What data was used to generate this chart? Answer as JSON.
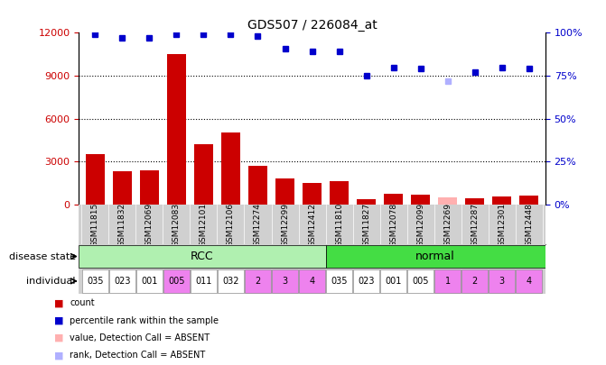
{
  "title": "GDS507 / 226084_at",
  "samples": [
    "GSM11815",
    "GSM11832",
    "GSM12069",
    "GSM12083",
    "GSM12101",
    "GSM12106",
    "GSM12274",
    "GSM12299",
    "GSM12412",
    "GSM11810",
    "GSM11827",
    "GSM12078",
    "GSM12099",
    "GSM12269",
    "GSM12287",
    "GSM12301",
    "GSM12448"
  ],
  "counts": [
    3500,
    2300,
    2400,
    10500,
    4200,
    5000,
    2700,
    1800,
    1500,
    1600,
    350,
    750,
    700,
    500,
    450,
    550,
    600
  ],
  "counts_absent": [
    false,
    false,
    false,
    false,
    false,
    false,
    false,
    false,
    false,
    false,
    false,
    false,
    false,
    true,
    false,
    false,
    false
  ],
  "percentile_ranks": [
    99,
    97,
    97,
    99,
    99,
    99,
    98,
    91,
    89,
    89,
    75,
    80,
    79,
    72,
    77,
    80,
    79
  ],
  "percentile_absent": [
    false,
    false,
    false,
    false,
    false,
    false,
    false,
    false,
    false,
    false,
    false,
    false,
    false,
    true,
    false,
    false,
    false
  ],
  "individual": [
    "035",
    "023",
    "001",
    "005",
    "011",
    "032",
    "2",
    "3",
    "4",
    "035",
    "023",
    "001",
    "005",
    "1",
    "2",
    "3",
    "4"
  ],
  "individual_color": [
    "white",
    "white",
    "white",
    "magenta",
    "white",
    "white",
    "magenta",
    "magenta",
    "magenta",
    "white",
    "white",
    "white",
    "white",
    "magenta",
    "magenta",
    "magenta",
    "magenta"
  ],
  "rcc_count": 9,
  "ylim_left": [
    0,
    12000
  ],
  "ylim_right": [
    0,
    100
  ],
  "yticks_left": [
    0,
    3000,
    6000,
    9000,
    12000
  ],
  "yticks_right": [
    0,
    25,
    50,
    75,
    100
  ],
  "yticklabels_right": [
    "0%",
    "25%",
    "50%",
    "75%",
    "100%"
  ],
  "bar_color": "#cc0000",
  "bar_color_absent": "#ffb0b0",
  "dot_color": "#0000cc",
  "dot_color_absent": "#b0b0ff",
  "rcc_color": "#b0f0b0",
  "normal_color": "#44dd44",
  "individual_white": "#ffffff",
  "individual_magenta": "#ee82ee",
  "label_band_color": "#d0d0d0",
  "legend_items": [
    {
      "color": "#cc0000",
      "label": "count"
    },
    {
      "color": "#0000cc",
      "label": "percentile rank within the sample"
    },
    {
      "color": "#ffb0b0",
      "label": "value, Detection Call = ABSENT"
    },
    {
      "color": "#b0b0ff",
      "label": "rank, Detection Call = ABSENT"
    }
  ]
}
